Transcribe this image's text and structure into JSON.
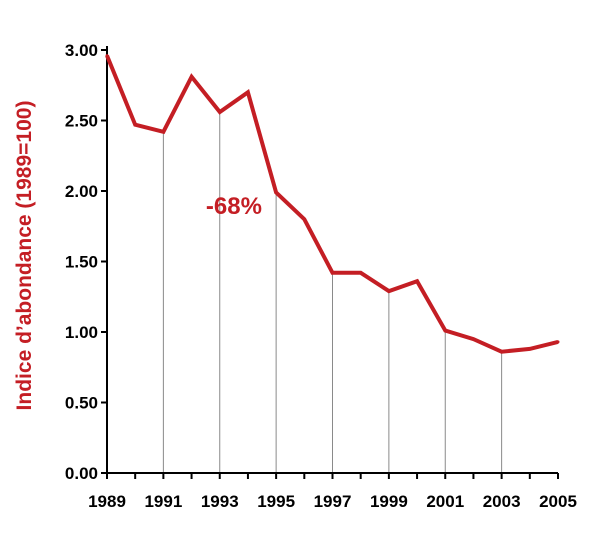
{
  "chart_data": {
    "type": "line",
    "title": "",
    "xlabel": "",
    "ylabel": "Indice d’abondance (1989=100)",
    "x": [
      1989,
      1990,
      1991,
      1992,
      1993,
      1994,
      1995,
      1996,
      1997,
      1998,
      1999,
      2000,
      2001,
      2002,
      2003,
      2004,
      2005
    ],
    "series": [
      {
        "values": [
          2.96,
          2.47,
          2.42,
          2.81,
          2.56,
          2.7,
          1.99,
          1.8,
          1.42,
          1.42,
          1.29,
          1.36,
          1.01,
          0.95,
          0.86,
          0.88,
          0.93
        ]
      }
    ],
    "xlim": [
      1989,
      2005
    ],
    "ylim": [
      0,
      3.0
    ],
    "xticks": [
      "1989",
      "1991",
      "1993",
      "1995",
      "1997",
      "1999",
      "2001",
      "2003",
      "2005"
    ],
    "yticks": [
      "0.00",
      "0.50",
      "1.00",
      "1.50",
      "2.00",
      "2.50",
      "3.00"
    ],
    "drop_lines": [
      1991,
      1993,
      1995,
      1997,
      1999,
      2001,
      2003
    ],
    "annotation": {
      "text": "-68%",
      "x": 1994,
      "y": 1.9
    },
    "grid": false,
    "colors": {
      "line": "#c41e24",
      "label": "#c41e24",
      "axis": "#000000",
      "droplines": "#8a8a8a"
    }
  }
}
